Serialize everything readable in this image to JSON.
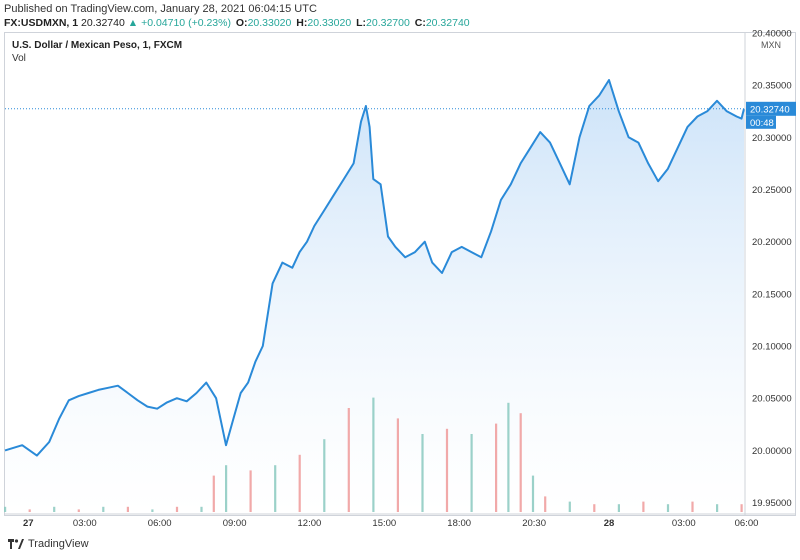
{
  "header": {
    "published": "Published on TradingView.com, January 28, 2021 06:04:15 UTC",
    "symbol": "FX:USDMXN, 1",
    "price": "20.32740",
    "change": "+0.04710 (+0.23%)",
    "o_label": "O:",
    "o_value": "20.33020",
    "h_label": "H:",
    "h_value": "20.33020",
    "l_label": "L:",
    "l_value": "20.32700",
    "c_label": "C:",
    "c_value": "20.32740"
  },
  "legend": {
    "title": "U.S. Dollar / Mexican Peso, 1, FXCM",
    "vol": "Vol"
  },
  "footer": {
    "brand": "TradingView"
  },
  "colors": {
    "line": "#2a8ad8",
    "fill_top": "#c9e1f8",
    "vol_up": "#89c9bf",
    "vol_down": "#ef9a9a",
    "price_label": "#2a8ad8"
  },
  "chart_data": {
    "type": "line",
    "title": "U.S. Dollar / Mexican Peso, 1, FXCM",
    "currency": "MXN",
    "last_price_label": "20.32740",
    "countdown_label": "00:48",
    "x_ticks": [
      "27",
      "03:00",
      "06:00",
      "09:00",
      "12:00",
      "15:00",
      "18:00",
      "20:30",
      "28",
      "03:00",
      "06:00"
    ],
    "y_ticks": [
      "20.40000",
      "20.35000",
      "20.30000",
      "20.25000",
      "20.20000",
      "20.15000",
      "20.10000",
      "20.05000",
      "20.00000",
      "19.95000"
    ],
    "ylim": [
      19.94,
      20.4
    ],
    "grid": false,
    "series": [
      {
        "x_hours": [
          0,
          0.7,
          1.3,
          1.8,
          2.2,
          2.6,
          3.0,
          3.4,
          3.8,
          4.2,
          4.6,
          5.0,
          5.4,
          5.8,
          6.2,
          6.6,
          7.0,
          7.4,
          7.8,
          8.2,
          8.6,
          9.0,
          9.3,
          9.6,
          9.9,
          10.2,
          10.5,
          10.9,
          11.3,
          11.7,
          12.0,
          12.3,
          12.6,
          13.0,
          13.4,
          13.8,
          14.2,
          14.5,
          14.7,
          14.85,
          15.0,
          15.3,
          15.6,
          15.9,
          16.3,
          16.7,
          17.1,
          17.4,
          17.8,
          18.2,
          18.6,
          19.0,
          19.4,
          19.8,
          20.2,
          20.6,
          21.0,
          21.4,
          21.8,
          22.2,
          22.6,
          23.0,
          23.4,
          23.8,
          24.2,
          24.6,
          25.0,
          25.4,
          25.8,
          26.2,
          26.6,
          27.0,
          27.4,
          27.8,
          28.2,
          28.6,
          29.0,
          29.4,
          29.8,
          30.0,
          30.1
        ],
        "values": [
          20.0,
          20.005,
          19.995,
          20.008,
          20.03,
          20.048,
          20.052,
          20.055,
          20.058,
          20.06,
          20.062,
          20.055,
          20.048,
          20.042,
          20.04,
          20.046,
          20.05,
          20.047,
          20.055,
          20.065,
          20.05,
          20.005,
          20.03,
          20.055,
          20.065,
          20.085,
          20.1,
          20.16,
          20.18,
          20.175,
          20.19,
          20.2,
          20.215,
          20.23,
          20.245,
          20.26,
          20.275,
          20.315,
          20.33,
          20.31,
          20.26,
          20.255,
          20.205,
          20.195,
          20.185,
          20.19,
          20.2,
          20.18,
          20.17,
          20.19,
          20.195,
          20.19,
          20.185,
          20.21,
          20.24,
          20.255,
          20.275,
          20.29,
          20.305,
          20.295,
          20.275,
          20.255,
          20.3,
          20.33,
          20.34,
          20.355,
          20.325,
          20.3,
          20.295,
          20.275,
          20.258,
          20.27,
          20.29,
          20.31,
          20.32,
          20.325,
          20.335,
          20.325,
          20.32,
          20.318,
          20.3274
        ]
      }
    ],
    "volume": {
      "label": "Vol",
      "x_hours": [
        0,
        1,
        2,
        3,
        4,
        5,
        6,
        7,
        8,
        8.5,
        9,
        10,
        11,
        12,
        13,
        14,
        15,
        16,
        17,
        18,
        19,
        20,
        20.5,
        21,
        21.5,
        22,
        23,
        24,
        25,
        26,
        27,
        28,
        29,
        30
      ],
      "values": [
        2,
        1,
        2,
        1,
        2,
        2,
        1,
        2,
        2,
        14,
        18,
        16,
        18,
        22,
        28,
        40,
        44,
        36,
        30,
        32,
        30,
        34,
        42,
        38,
        14,
        6,
        4,
        3,
        3,
        4,
        3,
        4,
        3,
        3
      ]
    }
  }
}
